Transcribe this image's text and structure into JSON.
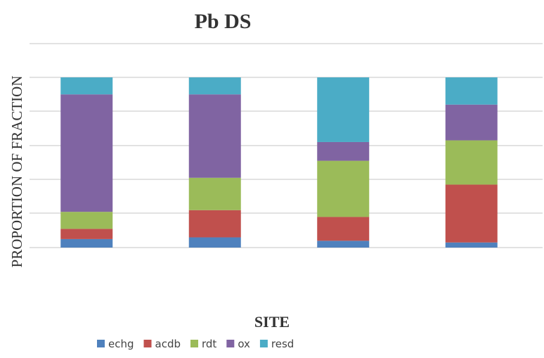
{
  "chart_data": {
    "type": "bar",
    "stacked": true,
    "title": "Pb DS",
    "xlabel": "SITE",
    "ylabel": "PROPORTION OF FRACTION",
    "categories": [
      "",
      "",
      "",
      ""
    ],
    "ylim": [
      0,
      1
    ],
    "grid": true,
    "legend_position": "bottom",
    "series": [
      {
        "name": "echg",
        "color": "#4F81BD",
        "values": [
          0.05,
          0.06,
          0.04,
          0.03
        ]
      },
      {
        "name": "acdb",
        "color": "#C0504D",
        "values": [
          0.06,
          0.16,
          0.14,
          0.34
        ]
      },
      {
        "name": "rdt",
        "color": "#9BBB59",
        "values": [
          0.1,
          0.19,
          0.33,
          0.26
        ]
      },
      {
        "name": "ox",
        "color": "#8064A2",
        "values": [
          0.69,
          0.49,
          0.11,
          0.21
        ]
      },
      {
        "name": "resd",
        "color": "#4BACC6",
        "values": [
          0.1,
          0.1,
          0.38,
          0.16
        ]
      }
    ]
  }
}
